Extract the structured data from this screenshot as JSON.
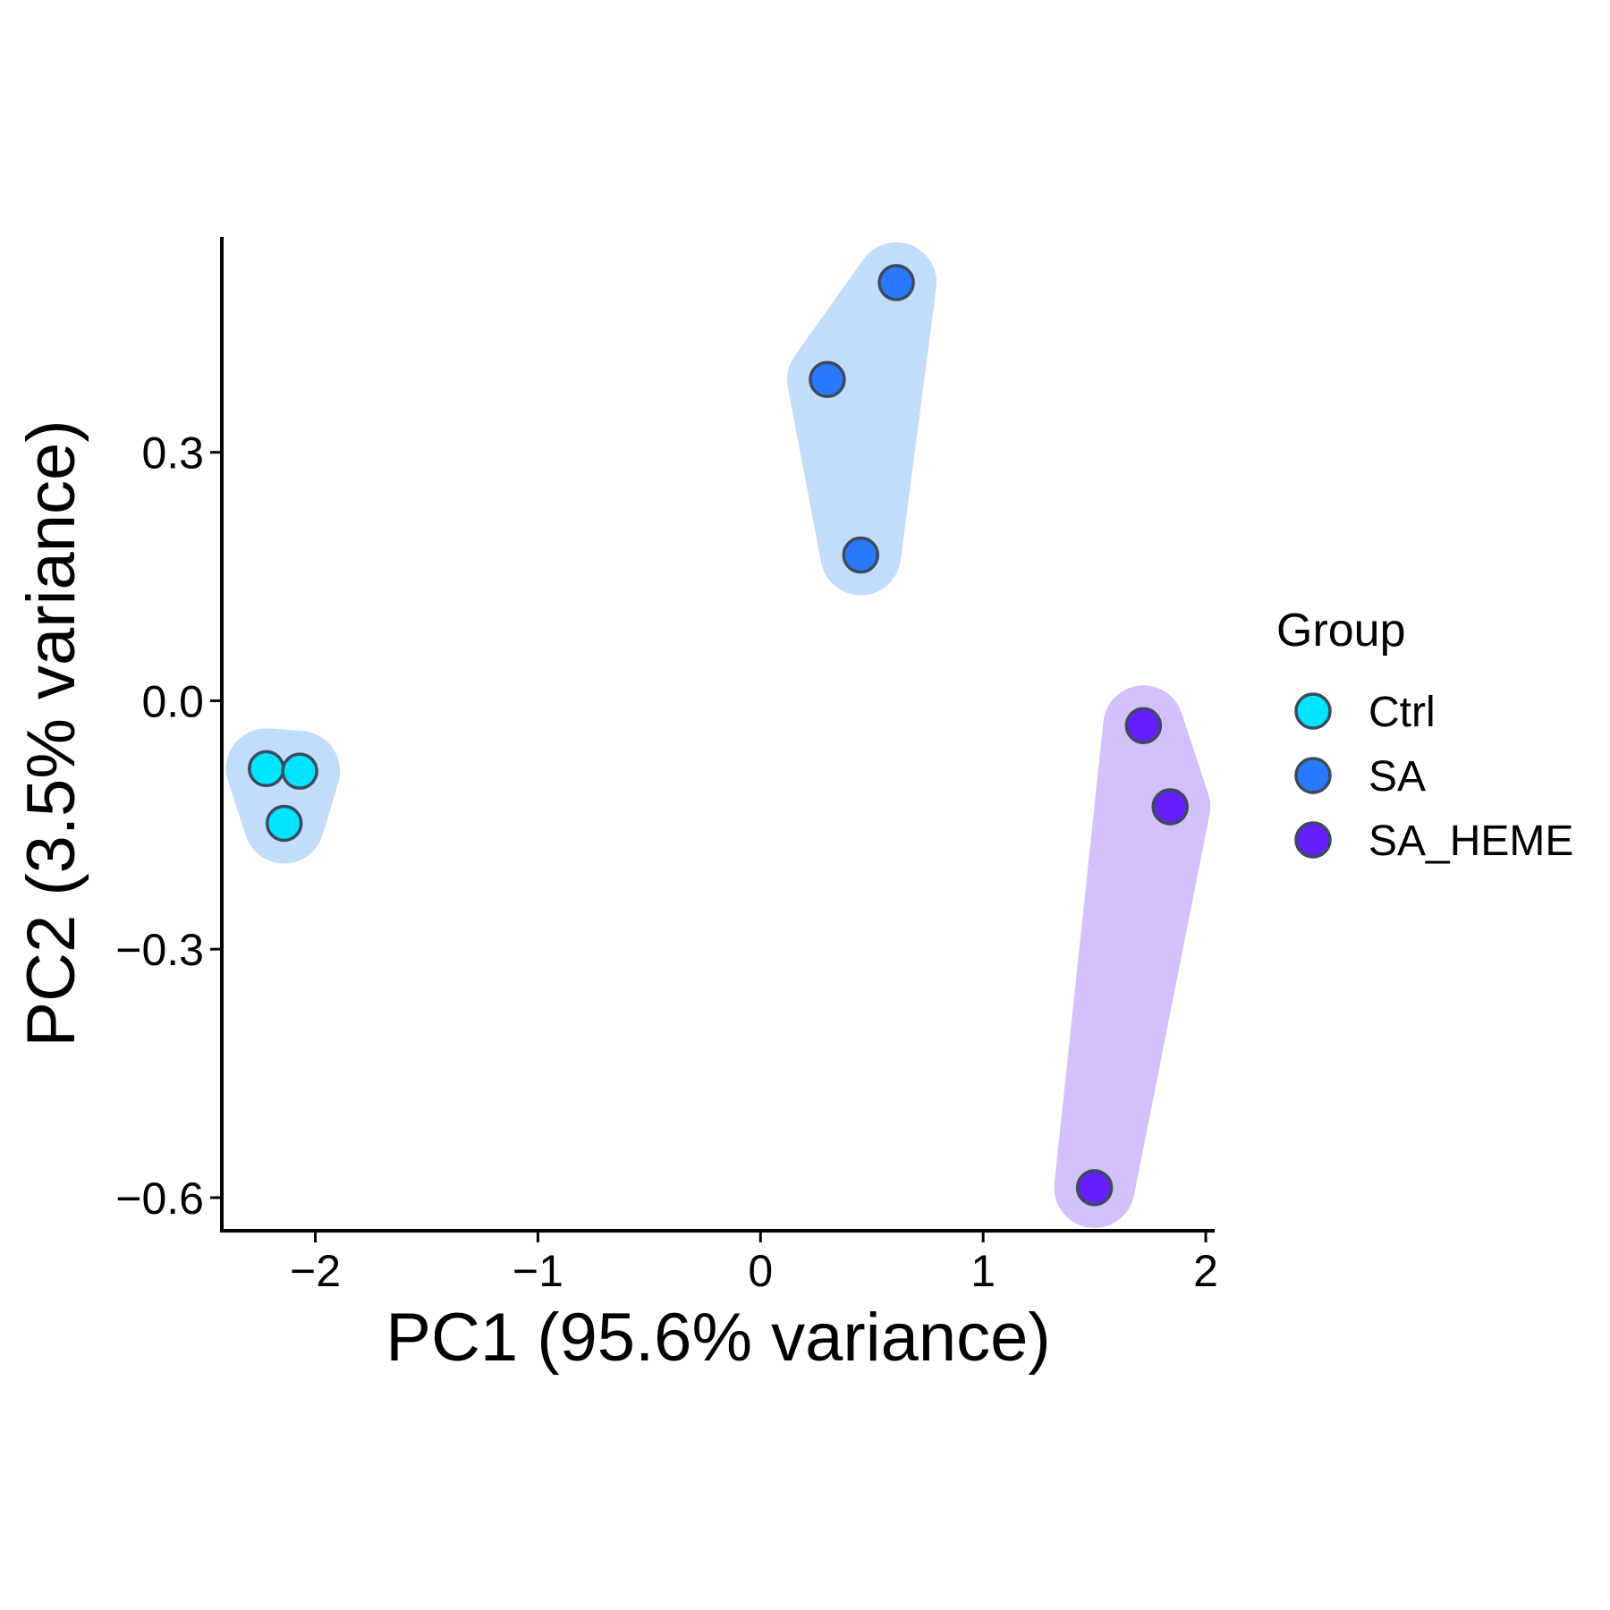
{
  "chart_data": {
    "type": "scatter",
    "title": "",
    "xlabel": "PC1 (95.6% variance)",
    "ylabel": "PC2 (3.5% variance)",
    "xlim": [
      -2.42,
      2.04
    ],
    "ylim": [
      -0.64,
      0.56
    ],
    "xticks": [
      -2,
      -1,
      0,
      1,
      2
    ],
    "xtick_labels": [
      "−2",
      "−1",
      "0",
      "1",
      "2"
    ],
    "yticks": [
      -0.6,
      -0.3,
      0.0,
      0.3
    ],
    "ytick_labels": [
      "−0.6",
      "−0.3",
      "0.0",
      "0.3"
    ],
    "grid": false,
    "legend": {
      "title": "Group",
      "placement": "right"
    },
    "series": [
      {
        "name": "Ctrl",
        "color": "#00e5ff",
        "hull_color": "#c2dcfb",
        "points": [
          {
            "x": -2.22,
            "y": -0.082
          },
          {
            "x": -2.07,
            "y": -0.085
          },
          {
            "x": -2.14,
            "y": -0.148
          }
        ]
      },
      {
        "name": "SA",
        "color": "#2979ff",
        "hull_color": "#c2dcfb",
        "points": [
          {
            "x": 0.61,
            "y": 0.505
          },
          {
            "x": 0.3,
            "y": 0.388
          },
          {
            "x": 0.45,
            "y": 0.176
          }
        ]
      },
      {
        "name": "SA_HEME",
        "color": "#651fff",
        "hull_color": "#d3c0fc",
        "points": [
          {
            "x": 1.72,
            "y": -0.03
          },
          {
            "x": 1.84,
            "y": -0.128
          },
          {
            "x": 1.5,
            "y": -0.588
          }
        ]
      }
    ]
  }
}
